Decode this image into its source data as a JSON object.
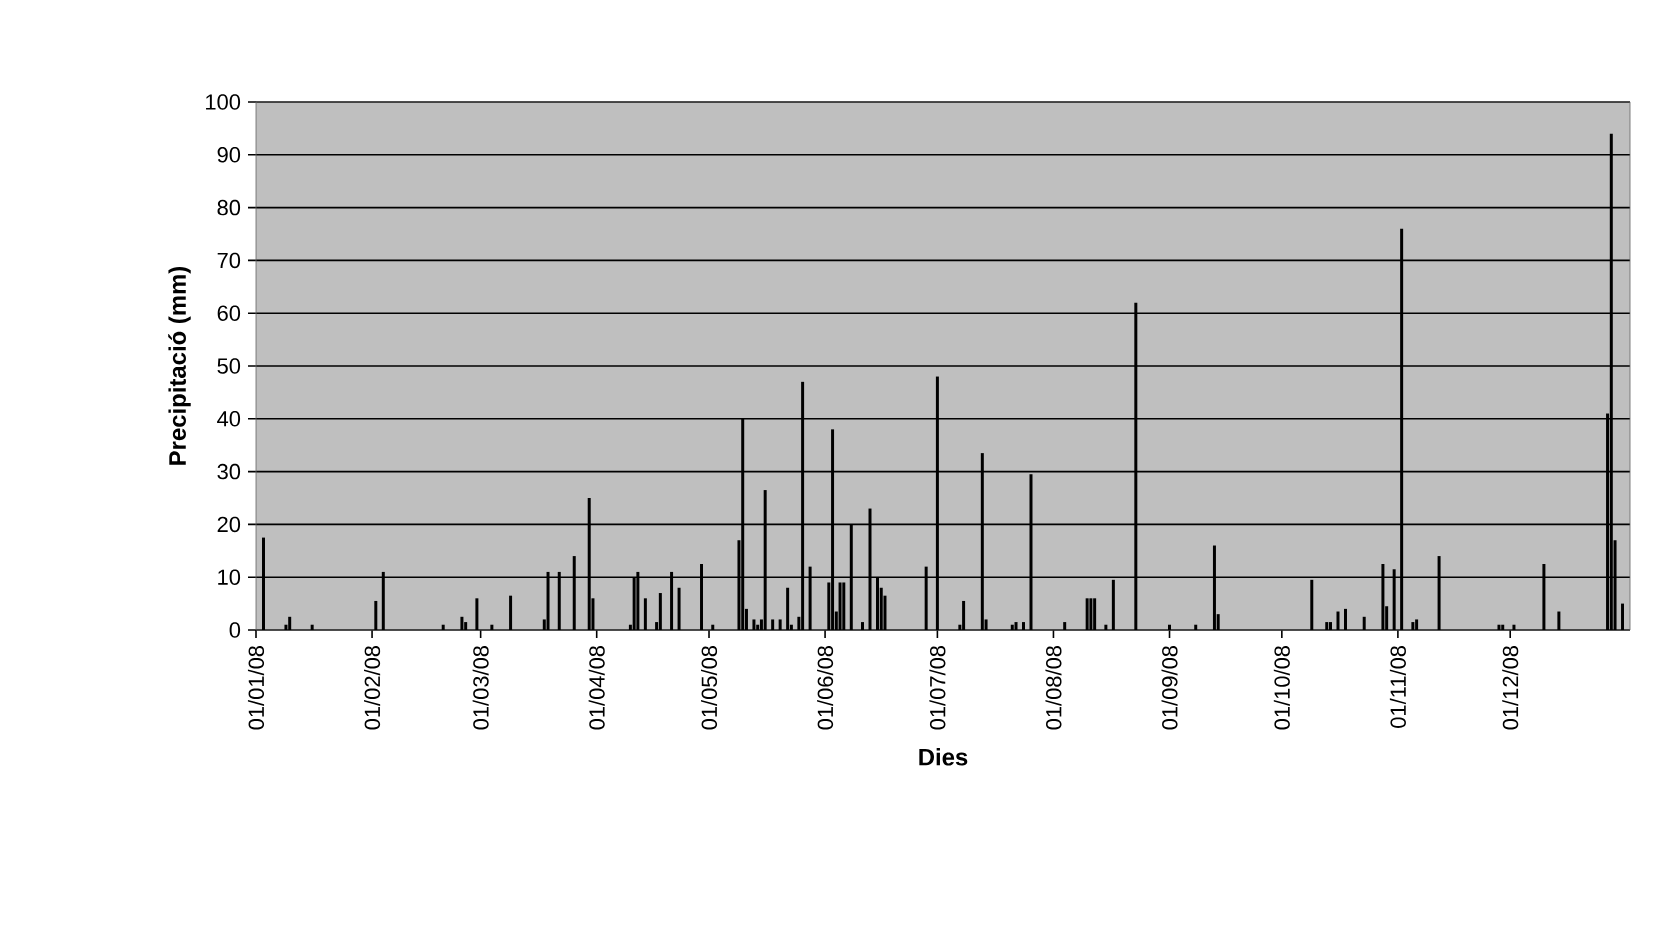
{
  "chart_data": {
    "type": "bar",
    "xlabel": "Dies",
    "ylabel": "Precipitació (mm)",
    "color": "#000000",
    "grid": "y",
    "x": [
      "2008-01-03",
      "2008-01-09",
      "2008-01-10",
      "2008-01-16",
      "2008-02-02",
      "2008-02-04",
      "2008-02-20",
      "2008-02-25",
      "2008-02-26",
      "2008-02-29",
      "2008-03-04",
      "2008-03-09",
      "2008-03-18",
      "2008-03-19",
      "2008-03-22",
      "2008-03-26",
      "2008-03-30",
      "2008-03-31",
      "2008-04-10",
      "2008-04-11",
      "2008-04-12",
      "2008-04-14",
      "2008-04-17",
      "2008-04-18",
      "2008-04-21",
      "2008-04-23",
      "2008-04-29",
      "2008-05-02",
      "2008-05-09",
      "2008-05-10",
      "2008-05-11",
      "2008-05-13",
      "2008-05-14",
      "2008-05-15",
      "2008-05-16",
      "2008-05-18",
      "2008-05-20",
      "2008-05-22",
      "2008-05-23",
      "2008-05-25",
      "2008-05-26",
      "2008-05-28",
      "2008-06-02",
      "2008-06-03",
      "2008-06-04",
      "2008-06-05",
      "2008-06-06",
      "2008-06-08",
      "2008-06-11",
      "2008-06-13",
      "2008-06-15",
      "2008-06-16",
      "2008-06-17",
      "2008-06-28",
      "2008-07-01",
      "2008-07-07",
      "2008-07-08",
      "2008-07-13",
      "2008-07-14",
      "2008-07-21",
      "2008-07-22",
      "2008-07-24",
      "2008-07-26",
      "2008-08-04",
      "2008-08-10",
      "2008-08-11",
      "2008-08-12",
      "2008-08-15",
      "2008-08-17",
      "2008-08-23",
      "2008-09-01",
      "2008-09-08",
      "2008-09-13",
      "2008-09-14",
      "2008-10-09",
      "2008-10-13",
      "2008-10-14",
      "2008-10-16",
      "2008-10-18",
      "2008-10-23",
      "2008-10-28",
      "2008-10-29",
      "2008-10-31",
      "2008-11-02",
      "2008-11-05",
      "2008-11-06",
      "2008-11-12",
      "2008-11-28",
      "2008-11-29",
      "2008-12-02",
      "2008-12-10",
      "2008-12-14",
      "2008-12-27",
      "2008-12-28",
      "2008-12-29",
      "2008-12-31"
    ],
    "values": [
      17.5,
      1,
      2.5,
      1,
      5.5,
      11,
      1,
      2.5,
      1.5,
      6,
      1,
      6.5,
      2,
      11,
      11,
      14,
      25,
      6,
      1,
      10,
      11,
      6,
      1.5,
      7,
      11,
      8,
      12.5,
      1,
      17,
      40,
      4,
      2,
      1,
      2,
      26.5,
      2,
      2,
      8,
      1,
      2.5,
      47,
      12,
      9,
      38,
      3.5,
      9,
      9,
      20,
      1.5,
      23,
      10,
      8,
      6.5,
      12,
      48,
      1,
      5.5,
      33.5,
      2,
      1,
      1.5,
      1.5,
      29.5,
      1.5,
      6,
      6,
      6,
      1,
      9.5,
      62,
      1,
      1,
      16,
      3,
      9.5,
      1.5,
      1.5,
      3.5,
      4,
      2.5,
      12.5,
      4.5,
      11.5,
      76,
      1.5,
      2,
      14,
      1,
      1,
      1,
      12.5,
      3.5,
      41,
      94,
      17,
      5
    ],
    "xlim": [
      "2008-01-01",
      "2009-01-02"
    ],
    "xticks": [
      {
        "value": "2008-01-01",
        "label": "01/01/08"
      },
      {
        "value": "2008-02-01",
        "label": "01/02/08"
      },
      {
        "value": "2008-03-01",
        "label": "01/03/08"
      },
      {
        "value": "2008-04-01",
        "label": "01/04/08"
      },
      {
        "value": "2008-05-01",
        "label": "01/05/08"
      },
      {
        "value": "2008-06-01",
        "label": "01/06/08"
      },
      {
        "value": "2008-07-01",
        "label": "01/07/08"
      },
      {
        "value": "2008-08-01",
        "label": "01/08/08"
      },
      {
        "value": "2008-09-01",
        "label": "01/09/08"
      },
      {
        "value": "2008-10-01",
        "label": "01/10/08"
      },
      {
        "value": "2008-11-01",
        "label": "01/11/08"
      },
      {
        "value": "2008-12-01",
        "label": "01/12/08"
      }
    ],
    "ylim": [
      0,
      100
    ],
    "yticks": [
      0,
      10,
      20,
      30,
      40,
      50,
      60,
      70,
      80,
      90,
      100
    ]
  }
}
